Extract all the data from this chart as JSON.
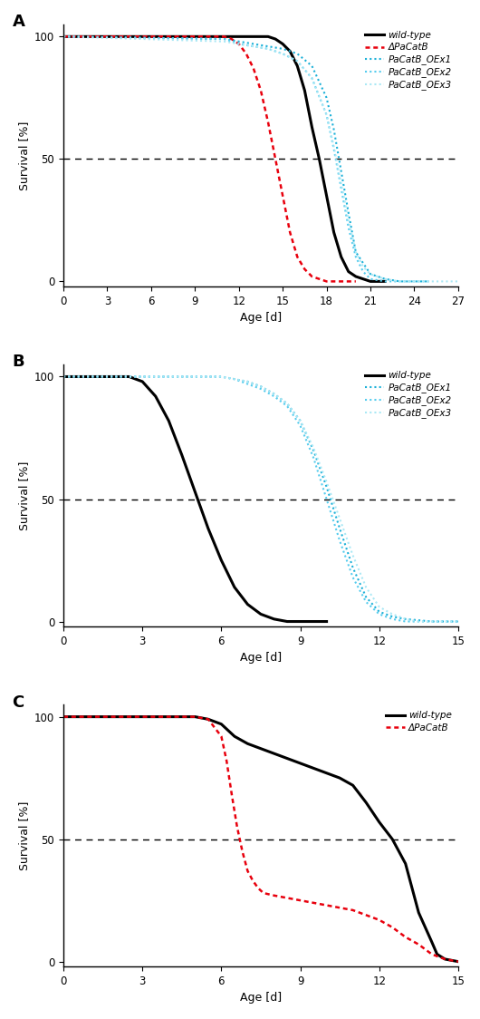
{
  "panel_A": {
    "title": "A",
    "xlim": [
      0,
      27
    ],
    "ylim": [
      -2,
      105
    ],
    "xticks": [
      0,
      3,
      6,
      9,
      12,
      15,
      18,
      21,
      24,
      27
    ],
    "yticks": [
      0,
      50,
      100
    ],
    "xlabel": "Age [d]",
    "ylabel": "Survival [%]",
    "series": {
      "wild_type": {
        "x": [
          0,
          14,
          14.5,
          15,
          15.5,
          16,
          16.5,
          17,
          17.5,
          18,
          18.5,
          19,
          19.5,
          20,
          20.5,
          21,
          22
        ],
        "y": [
          100,
          100,
          99,
          97,
          94,
          88,
          78,
          63,
          50,
          35,
          20,
          10,
          4,
          2,
          1,
          0,
          0
        ],
        "color": "#000000",
        "lw": 2.2,
        "linestyle": "solid",
        "label": "wild-type"
      },
      "delta": {
        "x": [
          0,
          11,
          11.5,
          12,
          12.5,
          13,
          13.5,
          14,
          14.5,
          15,
          15.5,
          16,
          16.5,
          17,
          17.5,
          18,
          19,
          20
        ],
        "y": [
          100,
          100,
          99,
          97,
          93,
          87,
          78,
          65,
          50,
          35,
          20,
          10,
          5,
          2,
          1,
          0,
          0,
          0
        ],
        "color": "#e8000d",
        "lw": 1.8,
        "linestyle": "dotted_dash",
        "label": "ΔPaCatB"
      },
      "OEx1": {
        "x": [
          0,
          11,
          12,
          13,
          14,
          15,
          16,
          17,
          18,
          18.5,
          19,
          19.5,
          20,
          21,
          22,
          23,
          24,
          25
        ],
        "y": [
          100,
          99,
          98,
          97,
          96,
          95,
          93,
          88,
          75,
          62,
          45,
          28,
          12,
          3,
          1,
          0,
          0,
          0
        ],
        "color": "#1ab0d8",
        "lw": 1.5,
        "linestyle": "dotted",
        "label": "PaCatB_OEx1"
      },
      "OEx2": {
        "x": [
          0,
          11,
          12,
          13,
          14,
          15,
          16,
          17,
          18,
          18.5,
          19,
          19.5,
          20,
          20.5,
          21,
          22,
          23,
          24,
          25
        ],
        "y": [
          100,
          99,
          97,
          96,
          95,
          93,
          90,
          83,
          68,
          54,
          38,
          22,
          10,
          4,
          1,
          0,
          0,
          0,
          0
        ],
        "color": "#55ccee",
        "lw": 1.5,
        "linestyle": "dotted",
        "label": "PaCatB_OEx2"
      },
      "OEx3": {
        "x": [
          0,
          11,
          12,
          13,
          14,
          15,
          16,
          17,
          18,
          18.5,
          19,
          19.5,
          20,
          20.5,
          21,
          22,
          23,
          24,
          25,
          26,
          27
        ],
        "y": [
          100,
          98,
          97,
          96,
          95,
          93,
          90,
          83,
          68,
          55,
          40,
          25,
          12,
          6,
          3,
          1,
          0,
          0,
          0,
          0,
          0
        ],
        "color": "#aae8f5",
        "lw": 1.5,
        "linestyle": "dotted",
        "label": "PaCatB_OEx3"
      }
    }
  },
  "panel_B": {
    "title": "B",
    "xlim": [
      0,
      15
    ],
    "ylim": [
      -2,
      105
    ],
    "xticks": [
      0,
      3,
      6,
      9,
      12,
      15
    ],
    "yticks": [
      0,
      50,
      100
    ],
    "xlabel": "Age [d]",
    "ylabel": "Survival [%]",
    "series": {
      "wild_type": {
        "x": [
          0,
          2.5,
          3,
          3.5,
          4,
          4.5,
          5,
          5.5,
          6,
          6.5,
          7,
          7.5,
          8,
          8.5,
          9,
          9.5,
          10
        ],
        "y": [
          100,
          100,
          98,
          92,
          82,
          68,
          53,
          38,
          25,
          14,
          7,
          3,
          1,
          0,
          0,
          0,
          0
        ],
        "color": "#000000",
        "lw": 2.2,
        "linestyle": "solid",
        "label": "wild-type"
      },
      "OEx1": {
        "x": [
          0,
          6,
          6.5,
          7,
          7.5,
          8,
          8.5,
          9,
          9.5,
          10,
          10.5,
          11,
          11.5,
          12,
          12.5,
          13,
          14,
          15
        ],
        "y": [
          100,
          100,
          99,
          98,
          96,
          93,
          89,
          82,
          70,
          55,
          38,
          22,
          10,
          4,
          2,
          1,
          0,
          0
        ],
        "color": "#1ab0d8",
        "lw": 1.5,
        "linestyle": "dotted",
        "label": "PaCatB_OEx1"
      },
      "OEx2": {
        "x": [
          0,
          6,
          6.5,
          7,
          7.5,
          8,
          8.5,
          9,
          9.5,
          10,
          10.5,
          11,
          11.5,
          12,
          12.5,
          13,
          14,
          15
        ],
        "y": [
          100,
          100,
          99,
          97,
          95,
          92,
          88,
          80,
          67,
          50,
          33,
          18,
          8,
          3,
          1,
          0,
          0,
          0
        ],
        "color": "#55ccee",
        "lw": 1.5,
        "linestyle": "dotted",
        "label": "PaCatB_OEx2"
      },
      "OEx3": {
        "x": [
          0,
          6,
          6.5,
          7,
          7.5,
          8,
          8.5,
          9,
          9.5,
          10,
          10.5,
          11,
          11.5,
          12,
          12.5,
          13,
          13.5,
          14,
          15
        ],
        "y": [
          100,
          100,
          99,
          98,
          96,
          93,
          89,
          82,
          71,
          57,
          42,
          27,
          14,
          6,
          3,
          1,
          0,
          0,
          0
        ],
        "color": "#aae8f5",
        "lw": 1.5,
        "linestyle": "dotted",
        "label": "PaCatB_OEx3"
      }
    }
  },
  "panel_C": {
    "title": "C",
    "xlim": [
      0,
      15
    ],
    "ylim": [
      -2,
      105
    ],
    "xticks": [
      0,
      3,
      6,
      9,
      12,
      15
    ],
    "yticks": [
      0,
      50,
      100
    ],
    "xlabel": "Age [d]",
    "ylabel": "Survival [%]",
    "series": {
      "wild_type": {
        "x": [
          0,
          5,
          5.5,
          6,
          6.5,
          7,
          7.5,
          8,
          8.5,
          9,
          9.5,
          10,
          10.5,
          11,
          11.5,
          12,
          12.5,
          13,
          13.5,
          14,
          14.2,
          14.5,
          15
        ],
        "y": [
          100,
          100,
          99,
          97,
          92,
          89,
          87,
          85,
          83,
          81,
          79,
          77,
          75,
          72,
          65,
          57,
          50,
          40,
          20,
          8,
          3,
          1,
          0
        ],
        "color": "#000000",
        "lw": 2.2,
        "linestyle": "solid",
        "label": "wild-type"
      },
      "delta": {
        "x": [
          0,
          5,
          5.5,
          6,
          6.2,
          6.4,
          6.6,
          6.8,
          7,
          7.2,
          7.4,
          7.6,
          8,
          8.5,
          9,
          9.5,
          10,
          10.5,
          11,
          11.5,
          12,
          12.5,
          13,
          13.5,
          14,
          14.5,
          15
        ],
        "y": [
          100,
          100,
          99,
          92,
          82,
          68,
          55,
          45,
          37,
          33,
          30,
          28,
          27,
          26,
          25,
          24,
          23,
          22,
          21,
          19,
          17,
          14,
          10,
          7,
          3,
          1,
          0
        ],
        "color": "#e8000d",
        "lw": 1.8,
        "linestyle": "dotted_dash",
        "label": "ΔPaCatB"
      }
    }
  },
  "legend_fontsize": 7.5,
  "axis_fontsize": 9,
  "tick_fontsize": 8.5,
  "panel_label_fontsize": 13
}
